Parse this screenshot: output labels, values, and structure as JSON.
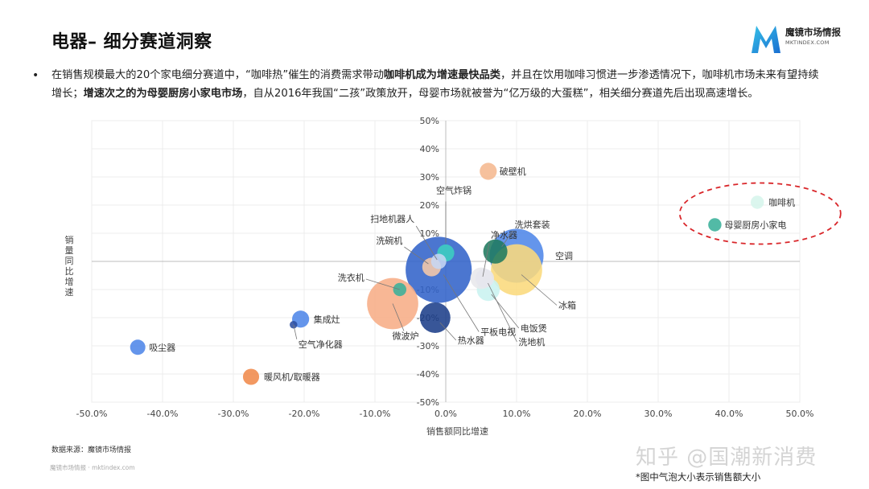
{
  "header": {
    "title": "电器– 细分赛道洞察",
    "logo_main": "魔镜市场情报",
    "logo_sub": "MKTINDEX.COM"
  },
  "description": {
    "bullet": "•",
    "segments": [
      {
        "text": "在销售规模最大的20个家电细分赛道中，“咖啡热”催生的消费需求带动",
        "bold": false
      },
      {
        "text": "咖啡机成为增速最快品类",
        "bold": true
      },
      {
        "text": "，并且在饮用咖啡习惯进一步渗透情况下，咖啡机市场未来有望持续增长；",
        "bold": false
      },
      {
        "text": "增速次之的为母婴厨房小家电市场",
        "bold": true
      },
      {
        "text": "，自从2016年我国“二孩”政策放开，母婴市场就被誉为“亿万级的大蛋糕”，相关细分赛道先后出现高速增长。",
        "bold": false
      }
    ]
  },
  "chart_data": {
    "type": "scatter",
    "xlabel": "销售额同比增速",
    "ylabel": "销量同比增速",
    "xlim": [
      -0.5,
      0.5
    ],
    "ylim": [
      -0.5,
      0.5
    ],
    "x_ticks": [
      "-50.0%",
      "-40.0%",
      "-30.0%",
      "-20.0%",
      "-10.0%",
      "0.0%",
      "10.0%",
      "20.0%",
      "30.0%",
      "40.0%",
      "50.0%"
    ],
    "y_ticks": [
      "50%",
      "40%",
      "30%",
      "20%",
      "10%",
      "0%",
      "-10%",
      "-20%",
      "-30%",
      "-40%",
      "-50%"
    ],
    "grid": true,
    "bubble_size_meaning": "销售额",
    "points": [
      {
        "name": "咖啡机",
        "x": 0.44,
        "y": 0.21,
        "size": 0.3,
        "color": "#d6f5ec"
      },
      {
        "name": "母婴厨房小家电",
        "x": 0.38,
        "y": 0.13,
        "size": 0.3,
        "color": "#3ab09a"
      },
      {
        "name": "破壁机",
        "x": 0.06,
        "y": 0.32,
        "size": 0.5,
        "color": "#f5b88f"
      },
      {
        "name": "空气炸锅",
        "x": 0.0,
        "y": 0.03,
        "size": 0.5,
        "color": "#3ccfc0"
      },
      {
        "name": "扫地机器人",
        "x": -0.01,
        "y": 0.0,
        "size": 0.4,
        "color": "#c7d7f2"
      },
      {
        "name": "洗碗机",
        "x": -0.02,
        "y": -0.02,
        "size": 0.6,
        "color": "#f6c9a8"
      },
      {
        "name": "净水器",
        "x": 0.05,
        "y": -0.06,
        "size": 0.8,
        "color": "#e8e8ec"
      },
      {
        "name": "洗烘套装",
        "x": 0.07,
        "y": 0.035,
        "size": 1.0,
        "color": "#1f7a5e"
      },
      {
        "name": "空调",
        "x": 0.1,
        "y": 0.02,
        "size": 5.0,
        "color": "#4f86e8"
      },
      {
        "name": "冰箱",
        "x": 0.1,
        "y": -0.03,
        "size": 4.5,
        "color": "#fbd97c"
      },
      {
        "name": "电饭煲",
        "x": 0.06,
        "y": -0.1,
        "size": 0.9,
        "color": "#c9f2f0"
      },
      {
        "name": "洗地机",
        "x": 0.055,
        "y": -0.06,
        "size": 0.6,
        "color": "#e6e6ee"
      },
      {
        "name": "平板电视",
        "x": -0.01,
        "y": -0.03,
        "size": 7.5,
        "color": "#3263c9"
      },
      {
        "name": "洗衣机",
        "x": -0.065,
        "y": -0.1,
        "size": 0.3,
        "color": "#3ab09a"
      },
      {
        "name": "热水器",
        "x": -0.015,
        "y": -0.2,
        "size": 1.6,
        "color": "#1d3f8a"
      },
      {
        "name": "微波炉",
        "x": -0.075,
        "y": -0.15,
        "size": 4.5,
        "color": "#f7ad86"
      },
      {
        "name": "集成灶",
        "x": -0.205,
        "y": -0.205,
        "size": 0.5,
        "color": "#4f86e8"
      },
      {
        "name": "空气净化器",
        "x": -0.215,
        "y": -0.225,
        "size": 0.1,
        "color": "#2c4fa0"
      },
      {
        "name": "吸尘器",
        "x": -0.435,
        "y": -0.305,
        "size": 0.4,
        "color": "#4f86e8"
      },
      {
        "name": "暖风机/取暖器",
        "x": -0.275,
        "y": -0.41,
        "size": 0.45,
        "color": "#f08a4b"
      }
    ]
  },
  "footer": {
    "source": "数据来源：魔镜市场情报",
    "brand_line": "魔镜市场情报 · mktindex.com",
    "watermark": "知乎 @国潮新消费",
    "note": "*图中气泡大小表示销售额大小"
  }
}
